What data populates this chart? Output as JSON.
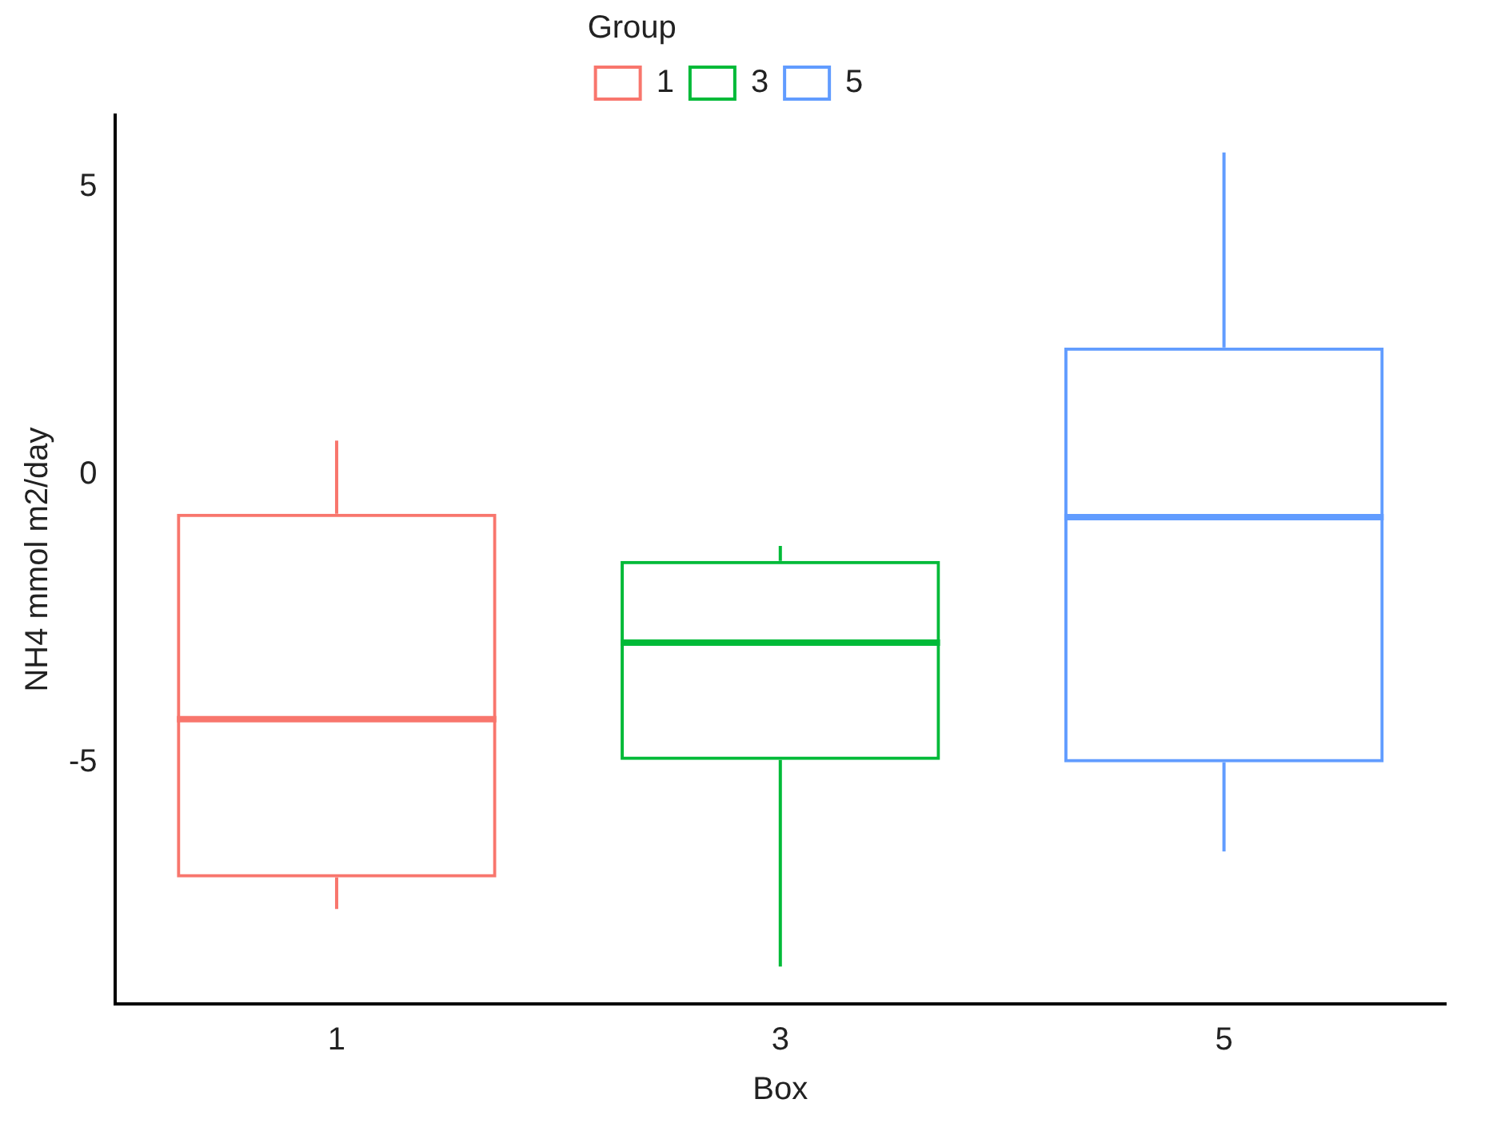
{
  "chart_data": {
    "type": "box",
    "xlabel": "Box",
    "ylabel": "NH4 mmol m2/day",
    "legend_title": "Group",
    "legend": "top",
    "categories": [
      "1",
      "3",
      "5"
    ],
    "ylim": [
      -9.2,
      6.25
    ],
    "yticks": [
      -5,
      0,
      5
    ],
    "grid": false,
    "series": [
      {
        "name": "1",
        "color": "#f8766d",
        "boxes": [
          {
            "low": -7.55,
            "q1": -7.0,
            "median": -4.25,
            "q3": -0.68,
            "high": 0.59
          },
          null,
          null
        ]
      },
      {
        "name": "3",
        "color": "#00ba38",
        "boxes": [
          null,
          {
            "low": -8.55,
            "q1": -4.96,
            "median": -2.92,
            "q3": -1.5,
            "high": -1.24
          },
          null
        ]
      },
      {
        "name": "5",
        "color": "#619cff",
        "boxes": [
          null,
          null,
          {
            "low": -6.55,
            "q1": -5.0,
            "median": -0.74,
            "q3": 2.21,
            "high": 5.6
          }
        ]
      }
    ]
  }
}
